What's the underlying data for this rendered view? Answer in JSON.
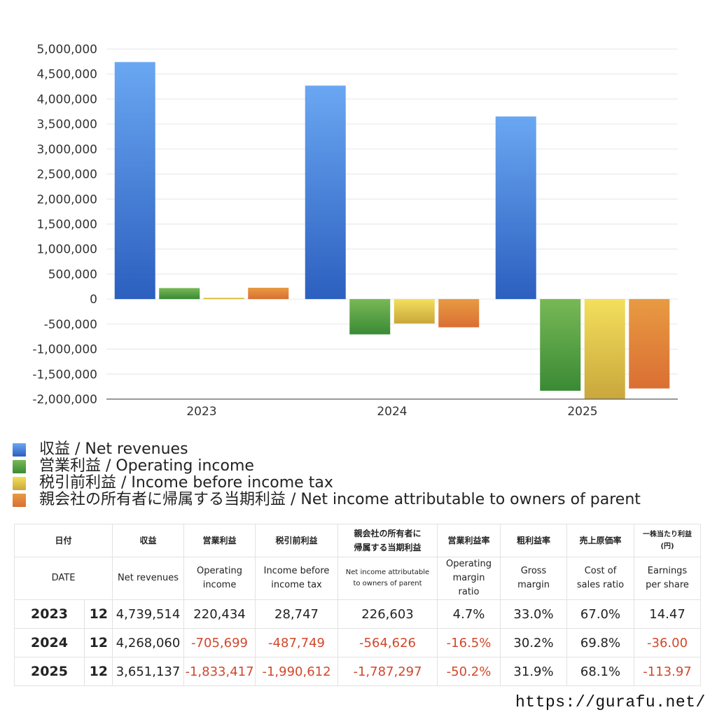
{
  "chart_data": {
    "type": "bar",
    "categories": [
      "2023",
      "2024",
      "2025"
    ],
    "ylim": [
      -2000000,
      5000000
    ],
    "yticks": [
      5000000,
      4500000,
      4000000,
      3500000,
      3000000,
      2500000,
      2000000,
      1500000,
      1000000,
      500000,
      0,
      -500000,
      -1000000,
      -1500000,
      -2000000
    ],
    "ytick_labels": [
      "5,000,000",
      "4,500,000",
      "4,000,000",
      "3,500,000",
      "3,000,000",
      "2,500,000",
      "2,000,000",
      "1,500,000",
      "1,000,000",
      "500,000",
      "0",
      "-500,000",
      "-1,000,000",
      "-1,500,000",
      "-2,000,000"
    ],
    "grid": true,
    "legend_position": "bottom",
    "series": [
      {
        "name": "収益 / Net revenues",
        "color": "#3f7fdc",
        "color_light": "#6aa7f2",
        "color_dark": "#2c5fbf",
        "values": [
          4739514,
          4268060,
          3651137
        ]
      },
      {
        "name": "営業利益 / Operating income",
        "color": "#4c9c3c",
        "color_light": "#78b856",
        "color_dark": "#3a8a35",
        "values": [
          220434,
          -705699,
          -1833417
        ]
      },
      {
        "name": "税引前利益 / Income before income tax",
        "color": "#e2c84a",
        "color_light": "#f3df5c",
        "color_dark": "#c9a73c",
        "values": [
          28747,
          -487749,
          -1990612
        ]
      },
      {
        "name": "親会社の所有者に帰属する当期利益 / Net income attributable to owners of parent",
        "color": "#e2823a",
        "color_light": "#e89a42",
        "color_dark": "#da6f33",
        "values": [
          226603,
          -564626,
          -1787297
        ]
      }
    ]
  },
  "table": {
    "headers_ja": {
      "date": "日付",
      "net_revenues": "収益",
      "operating_income": "営業利益",
      "income_before_tax": "税引前利益",
      "net_income_line1": "親会社の所有者に",
      "net_income_line2": "帰属する当期利益",
      "operating_margin": "営業利益率",
      "gross_margin": "粗利益率",
      "cost_ratio": "売上原価率",
      "eps_line1": "一株当たり利益",
      "eps_line2": "(円)"
    },
    "headers_en": {
      "date": "DATE",
      "net_revenues": "Net revenues",
      "operating_income_line1": "Operating",
      "operating_income_line2": "income",
      "income_before_tax_line1": "Income before",
      "income_before_tax_line2": "income tax",
      "net_income_line1": "Net income attributable",
      "net_income_line2": "to owners of parent",
      "operating_margin_line1": "Operating",
      "operating_margin_line2": "margin",
      "operating_margin_line3": "ratio",
      "gross_margin_line1": "Gross",
      "gross_margin_line2": "margin",
      "cost_ratio_line1": "Cost of",
      "cost_ratio_line2": "sales ratio",
      "eps_line1": "Earnings",
      "eps_line2": "per share"
    },
    "rows": [
      {
        "year": "2023",
        "month": "12",
        "net_revenues": "4,739,514",
        "operating_income": "220,434",
        "income_before_tax": "28,747",
        "net_income": "226,603",
        "operating_margin": "4.7%",
        "gross_margin": "33.0%",
        "cost_ratio": "67.0%",
        "eps": "14.47"
      },
      {
        "year": "2024",
        "month": "12",
        "net_revenues": "4,268,060",
        "operating_income": "-705,699",
        "income_before_tax": "-487,749",
        "net_income": "-564,626",
        "operating_margin": "-16.5%",
        "gross_margin": "30.2%",
        "cost_ratio": "69.8%",
        "eps": "-36.00"
      },
      {
        "year": "2025",
        "month": "12",
        "net_revenues": "3,651,137",
        "operating_income": "-1,833,417",
        "income_before_tax": "-1,990,612",
        "net_income": "-1,787,297",
        "operating_margin": "-50.2%",
        "gross_margin": "31.9%",
        "cost_ratio": "68.1%",
        "eps": "-113.97"
      }
    ]
  },
  "site_url": "https://gurafu.net/"
}
